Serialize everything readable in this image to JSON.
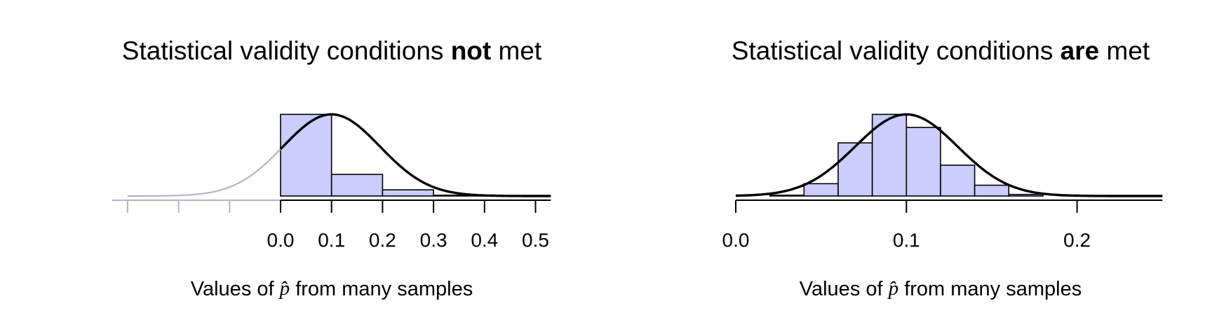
{
  "chart_data": [
    {
      "type": "histogram",
      "title_parts": [
        "Statistical validity conditions",
        "not",
        "met"
      ],
      "xlabel_parts": [
        "Values of",
        "p̂",
        "from many samples"
      ],
      "bins": [
        0,
        0.1,
        0.2,
        0.3,
        0.4,
        0.5
      ],
      "values": [
        106,
        28,
        8,
        1,
        0.5
      ],
      "xlim": [
        -0.33,
        0.53
      ],
      "ylim": [
        0,
        110
      ],
      "xticks": [
        {
          "value": 0,
          "label": "0.0"
        },
        0.1,
        0.2,
        0.3,
        0.4,
        0.5
      ],
      "xticks_unlabeled": [
        -0.3,
        -0.2,
        -0.1
      ],
      "normal_curve": {
        "mean": 0.1,
        "sd": 0.095,
        "peak": 106
      },
      "faded_below": 0,
      "colors": {
        "bar": "#ccccff",
        "line": "#000000",
        "faded": "#b3b3cc"
      }
    },
    {
      "type": "histogram",
      "title_parts": [
        "Statistical validity conditions",
        "are",
        "met"
      ],
      "xlabel_parts": [
        "Values of",
        "p̂",
        "from many samples"
      ],
      "bins": [
        0.02,
        0.04,
        0.06,
        0.08,
        0.1,
        0.12,
        0.14,
        0.16,
        0.18
      ],
      "values": [
        1,
        16,
        69,
        106,
        89,
        40,
        14,
        2
      ],
      "xlim": [
        0,
        0.25
      ],
      "ylim": [
        0,
        110
      ],
      "xticks": [
        {
          "value": 0,
          "label": "0.0"
        },
        0.1,
        0.2
      ],
      "normal_curve": {
        "mean": 0.1,
        "sd": 0.03,
        "peak": 106
      },
      "colors": {
        "bar": "#ccccff",
        "line": "#000000",
        "faded": "#b3b3cc"
      }
    }
  ]
}
